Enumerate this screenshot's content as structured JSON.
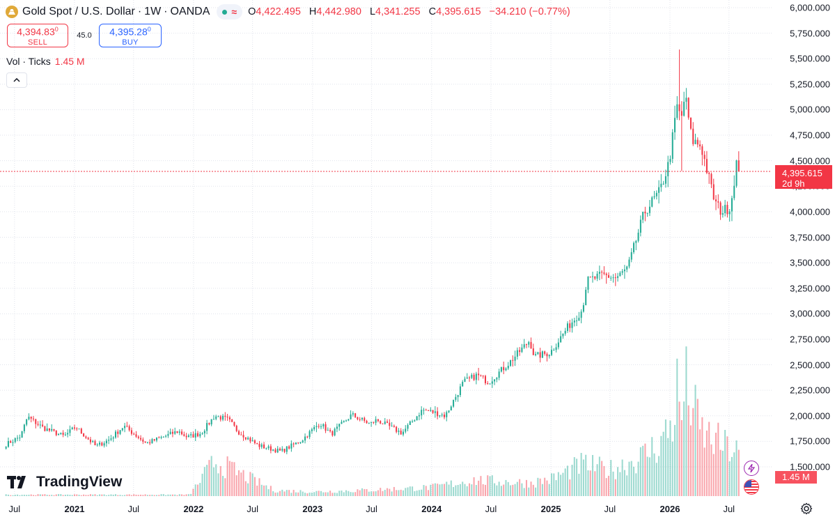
{
  "header": {
    "symbol": "Gold Spot / U.S. Dollar",
    "sep1": "·",
    "interval": "1W",
    "sep2": "·",
    "broker": "OANDA",
    "ohlc": {
      "o_key": "O",
      "o_val": "4,422.495",
      "h_key": "H",
      "h_val": "4,442.980",
      "l_key": "L",
      "l_val": "4,341.255",
      "c_key": "C",
      "c_val": "4,395.615",
      "change": "−34.210 (−0.77%)"
    }
  },
  "trade": {
    "sell_price": "4,394.83",
    "sell_sup": "0",
    "sell_label": "SELL",
    "spread": "45.0",
    "buy_price": "4,395.28",
    "buy_sup": "0",
    "buy_label": "BUY"
  },
  "volume_legend": {
    "label": "Vol · Ticks",
    "value": "1.45 M"
  },
  "brand": "TradingView",
  "price_badge": {
    "price": "4,395.615",
    "countdown": "2d 9h"
  },
  "volume_badge": "1.45 M",
  "colors": {
    "up": "#22ab94",
    "down": "#f23645",
    "grid": "#e0e3eb",
    "last_price_line": "#f23645"
  },
  "chart_data": {
    "type": "candlestick",
    "title": "Gold Spot / U.S. Dollar · 1W · OANDA",
    "y_axis": {
      "ticks": [
        "6,000.000",
        "5,750.000",
        "5,500.000",
        "5,250.000",
        "5,000.000",
        "4,750.000",
        "4,500.000",
        "4,250.000",
        "4,000.000",
        "3,750.000",
        "3,500.000",
        "3,250.000",
        "3,000.000",
        "2,750.000",
        "2,500.000",
        "2,250.000",
        "2,000.000",
        "1,750.000",
        "1,500.000"
      ],
      "tick_values": [
        6000,
        5750,
        5500,
        5250,
        5000,
        4750,
        4500,
        4250,
        4000,
        3750,
        3500,
        3250,
        3000,
        2750,
        2500,
        2250,
        2000,
        1750,
        1500
      ],
      "range": [
        1500,
        6000
      ]
    },
    "x_axis": {
      "ticks": [
        "Jul",
        "2021",
        "Jul",
        "2022",
        "Jul",
        "2023",
        "Jul",
        "2024",
        "Jul",
        "2025",
        "Jul",
        "2026",
        "Jul"
      ],
      "tick_dates": [
        "2020-07-01",
        "2021-01-01",
        "2021-07-01",
        "2022-01-01",
        "2022-07-01",
        "2023-01-01",
        "2023-07-01",
        "2024-01-01",
        "2024-07-01",
        "2025-01-01",
        "2025-07-01",
        "2026-01-01",
        "2026-07-01"
      ]
    },
    "grid": true,
    "last_price": 4395.615,
    "price_path": {
      "dates": [
        "2020-06-05",
        "2020-07-20",
        "2020-08-10",
        "2020-09-28",
        "2020-11-30",
        "2021-01-04",
        "2021-03-08",
        "2021-04-19",
        "2021-06-01",
        "2021-08-09",
        "2021-11-15",
        "2021-12-13",
        "2022-01-24",
        "2022-03-07",
        "2022-04-18",
        "2022-05-16",
        "2022-07-18",
        "2022-09-26",
        "2022-11-28",
        "2023-01-23",
        "2023-02-27",
        "2023-05-01",
        "2023-06-26",
        "2023-07-17",
        "2023-10-02",
        "2023-12-04",
        "2024-01-01",
        "2024-02-12",
        "2024-04-08",
        "2024-05-20",
        "2024-06-24",
        "2024-08-26",
        "2024-10-28",
        "2024-11-11",
        "2024-12-30",
        "2025-02-24",
        "2025-04-07",
        "2025-04-21",
        "2025-06-09",
        "2025-07-21",
        "2025-08-25",
        "2025-10-13",
        "2025-10-27",
        "2025-12-01",
        "2025-12-29",
        "2026-01-26",
        "2026-02-02",
        "2026-02-16",
        "2026-03-09",
        "2026-04-06",
        "2026-05-18",
        "2026-06-08",
        "2026-07-06",
        "2026-07-27",
        "2026-08-03"
      ],
      "close": [
        1720,
        1800,
        1990,
        1880,
        1800,
        1890,
        1700,
        1770,
        1900,
        1730,
        1850,
        1790,
        1830,
        2000,
        1960,
        1850,
        1710,
        1650,
        1760,
        1930,
        1820,
        2010,
        1920,
        1960,
        1830,
        2060,
        2040,
        2000,
        2330,
        2400,
        2330,
        2520,
        2740,
        2580,
        2620,
        2880,
        3040,
        3320,
        3380,
        3350,
        3450,
        3980,
        4050,
        4200,
        4480,
        5100,
        4850,
        5150,
        4700,
        4650,
        4100,
        4000,
        4050,
        4550,
        4395.6
      ]
    },
    "volume": {
      "label": "Vol · Ticks",
      "last": "1.45 M",
      "dates": [
        "2020-06-01",
        "2021-12-20",
        "2022-03-07",
        "2022-06-06",
        "2022-09-05",
        "2023-01-02",
        "2023-06-05",
        "2024-01-01",
        "2024-05-06",
        "2024-10-28",
        "2025-01-06",
        "2025-04-07",
        "2025-06-30",
        "2025-09-29",
        "2025-12-01",
        "2026-01-12",
        "2026-01-26",
        "2026-02-02",
        "2026-02-16",
        "2026-04-06",
        "2026-06-01",
        "2026-08-03"
      ],
      "values": [
        0.05,
        0.05,
        1.2,
        0.7,
        0.2,
        0.15,
        0.2,
        0.3,
        0.55,
        0.45,
        0.6,
        1.1,
        0.9,
        1.3,
        1.8,
        2.6,
        4.0,
        2.3,
        3.9,
        2.2,
        1.8,
        1.45
      ],
      "unit": "M"
    }
  }
}
